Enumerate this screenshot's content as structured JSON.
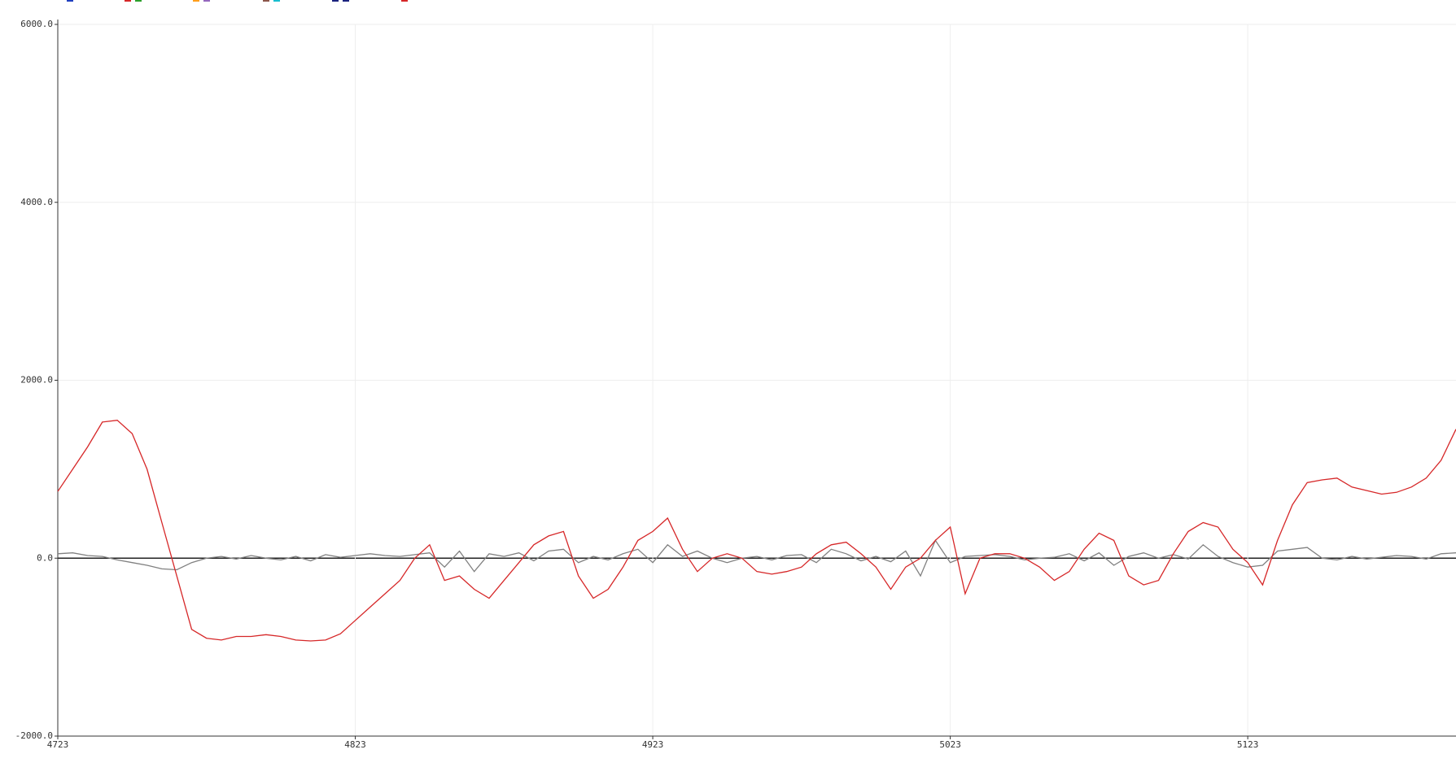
{
  "chart_data": {
    "type": "line",
    "x": [
      4723,
      4728,
      4733,
      4738,
      4743,
      4748,
      4753,
      4758,
      4763,
      4768,
      4773,
      4778,
      4783,
      4788,
      4793,
      4798,
      4803,
      4808,
      4813,
      4818,
      4823,
      4828,
      4833,
      4838,
      4843,
      4848,
      4853,
      4858,
      4863,
      4868,
      4873,
      4878,
      4883,
      4888,
      4893,
      4898,
      4903,
      4908,
      4913,
      4918,
      4923,
      4928,
      4933,
      4938,
      4943,
      4948,
      4953,
      4958,
      4963,
      4968,
      4973,
      4978,
      4983,
      4988,
      4993,
      4998,
      5003,
      5008,
      5013,
      5018,
      5023,
      5028,
      5033,
      5038,
      5043,
      5048,
      5053,
      5058,
      5063,
      5068,
      5073,
      5078,
      5083,
      5088,
      5093,
      5098,
      5103,
      5108,
      5113,
      5118,
      5123,
      5128,
      5133,
      5138,
      5143,
      5148,
      5153,
      5158,
      5163,
      5168,
      5173,
      5178,
      5183,
      5188,
      5193
    ],
    "series": [
      {
        "color": "#808080",
        "values": [
          50,
          60,
          30,
          20,
          -20,
          -50,
          -80,
          -120,
          -130,
          -50,
          0,
          20,
          -10,
          30,
          0,
          -20,
          20,
          -30,
          40,
          10,
          30,
          50,
          30,
          20,
          40,
          60,
          -100,
          80,
          -150,
          50,
          20,
          60,
          -30,
          80,
          100,
          -50,
          20,
          -20,
          50,
          100,
          -50,
          150,
          20,
          80,
          0,
          -50,
          0,
          20,
          -20,
          30,
          40,
          -50,
          100,
          50,
          -30,
          20,
          -40,
          80,
          -200,
          200,
          -50,
          20,
          30,
          40,
          20,
          -20,
          0,
          10,
          50,
          -30,
          60,
          -80,
          20,
          60,
          0,
          40,
          -10,
          150,
          20,
          -50,
          -100,
          -80,
          80,
          100,
          120,
          0,
          -20,
          20,
          -10,
          10,
          30,
          20,
          -10,
          50,
          60
        ]
      },
      {
        "color": "#d62728",
        "values": [
          750,
          1000,
          1250,
          1530,
          1550,
          1400,
          1000,
          400,
          -200,
          -800,
          -900,
          -920,
          -880,
          -880,
          -860,
          -880,
          -920,
          -930,
          -920,
          -850,
          -700,
          -550,
          -400,
          -250,
          0,
          150,
          -250,
          -200,
          -350,
          -450,
          -250,
          -50,
          150,
          250,
          300,
          -200,
          -450,
          -350,
          -100,
          200,
          300,
          450,
          100,
          -150,
          0,
          50,
          0,
          -150,
          -180,
          -150,
          -100,
          50,
          150,
          180,
          50,
          -100,
          -350,
          -100,
          0,
          200,
          350,
          -400,
          0,
          50,
          50,
          0,
          -100,
          -250,
          -150,
          100,
          280,
          200,
          -200,
          -300,
          -250,
          50,
          300,
          400,
          350,
          100,
          -50,
          -300,
          200,
          600,
          850,
          880,
          900,
          800,
          760,
          720,
          740,
          800,
          900,
          1100,
          1450
        ]
      }
    ],
    "xlim": [
      4723,
      5193
    ],
    "xticks": [
      4723,
      4823,
      4923,
      5023,
      5123
    ],
    "ylim": [
      -2000,
      6000
    ],
    "yticks": [
      {
        "value": -2000,
        "label": "-2000.0"
      },
      {
        "value": 0,
        "label": "0.0"
      },
      {
        "value": 2000,
        "label": "2000.0"
      },
      {
        "value": 4000,
        "label": "4000.0"
      },
      {
        "value": 6000,
        "label": "6000.0"
      }
    ],
    "grid": true
  }
}
